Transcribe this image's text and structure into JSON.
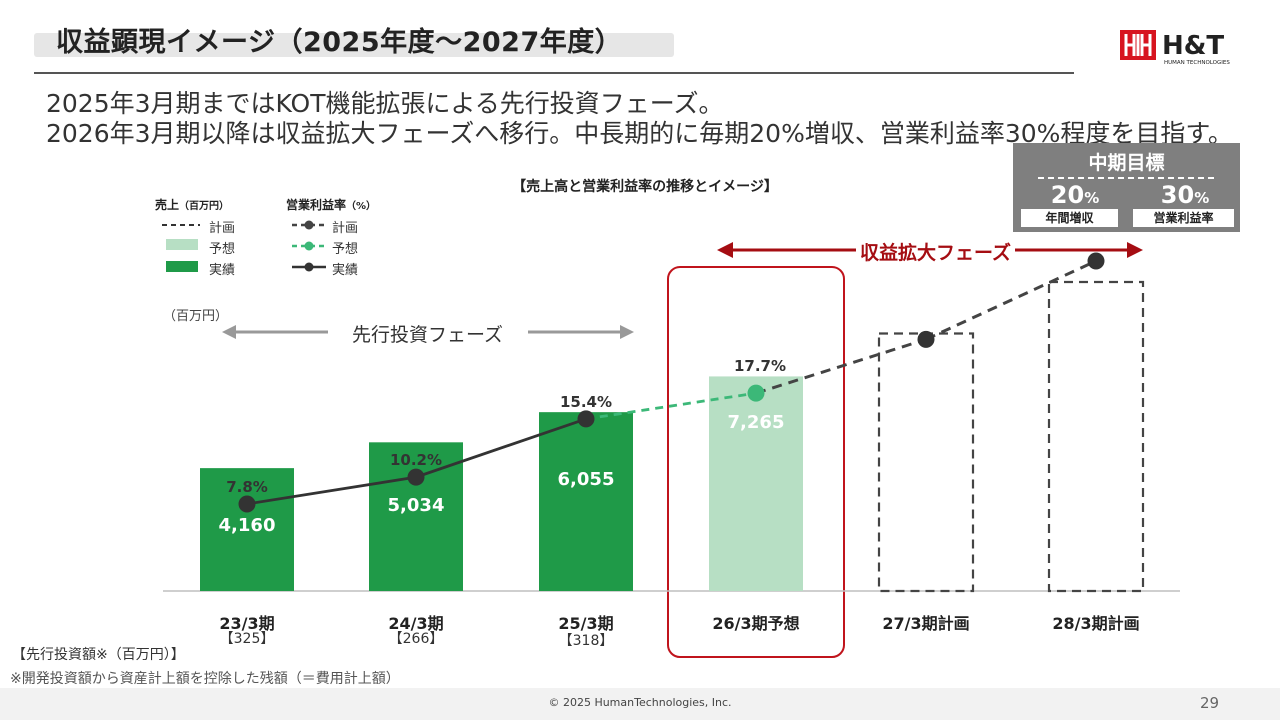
{
  "title": "収益顕現イメージ（2025年度～2027年度）",
  "logo_text": "H&T",
  "logo_sub": "HUMAN TECHNOLOGIES",
  "subtitle_lines": [
    "2025年3月期まではKOT機能拡張による先行投資フェーズ。",
    "2026年3月期以降は収益拡大フェーズへ移行。中長期的に毎期20%増収、営業利益率30%程度を目指す。"
  ],
  "target": {
    "title": "中期目標",
    "growth_value": "20",
    "growth_unit": "%",
    "growth_label": "年間増収",
    "margin_value": "30",
    "margin_unit": "%",
    "margin_label": "営業利益率"
  },
  "legend": {
    "sales_head": "売上",
    "sales_unit": "（百万円）",
    "sales_items": [
      "計画",
      "予想",
      "実績"
    ],
    "margin_head": "営業利益率",
    "margin_unit": "（%）",
    "margin_items": [
      "計画",
      "予想",
      "実績"
    ]
  },
  "phases": {
    "investment": "先行投資フェーズ",
    "growth": "収益拡大フェーズ"
  },
  "colors": {
    "actual": "#1f9a48",
    "forecast": "#b7dfc4",
    "forecast_line": "#3cb878",
    "plan_line": "#444444",
    "highlight": "#c0141c",
    "phase_arrow": "#a50d12"
  },
  "investment": {
    "title": "【先行投資額※（百万円）】",
    "values": [
      "【325】",
      "【266】",
      "【318】"
    ]
  },
  "footnote": "※開発投資額から資産計上額を控除した残額（＝費用計上額）",
  "copyright": "© 2025 HumanTechnologies, Inc.",
  "page_number": "29",
  "chart_data": {
    "type": "bar",
    "title": "【売上高と営業利益率の推移とイメージ】",
    "unit_label": "（百万円）",
    "categories": [
      "23/3期",
      "24/3期",
      "25/3期",
      "26/3期予想",
      "27/3期計画",
      "28/3期計画"
    ],
    "series": [
      {
        "name": "売上",
        "values": [
          4160,
          5034,
          6055,
          7265,
          8718,
          10462
        ],
        "value_labels": [
          "4,160",
          "5,034",
          "6,055",
          "7,265",
          "",
          ""
        ],
        "status": [
          "実績",
          "実績",
          "実績",
          "予想",
          "計画",
          "計画"
        ]
      },
      {
        "name": "営業利益率",
        "values": [
          7.8,
          10.2,
          15.4,
          17.7,
          22.5,
          29.5
        ],
        "value_labels": [
          "7.8%",
          "10.2%",
          "15.4%",
          "17.7%",
          "",
          ""
        ],
        "status": [
          "実績",
          "実績",
          "実績",
          "予想",
          "計画",
          "計画"
        ]
      }
    ],
    "highlight_category": "26/3期予想",
    "bar_ylim": [
      0,
      11000
    ],
    "line_ylim": [
      0,
      35
    ]
  }
}
